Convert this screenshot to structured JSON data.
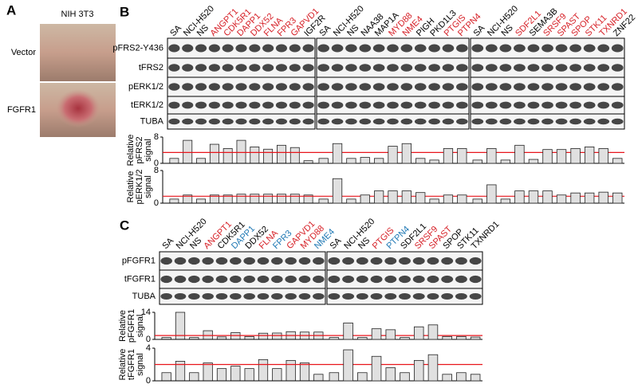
{
  "panels": {
    "A": {
      "label": "A",
      "title": "NIH 3T3",
      "rows": [
        "Vector",
        "FGFR1"
      ]
    },
    "B": {
      "label": "B",
      "lanes": [
        [
          {
            "text": "SA",
            "color": "#000000"
          },
          {
            "text": "NCI-H520",
            "color": "#000000"
          },
          {
            "text": "NS",
            "color": "#000000"
          },
          {
            "text": "ANGPT1",
            "color": "#d62027"
          },
          {
            "text": "CDK5R1",
            "color": "#d62027"
          },
          {
            "text": "DAPP1",
            "color": "#d62027"
          },
          {
            "text": "DDX52",
            "color": "#d62027"
          },
          {
            "text": "FLNA",
            "color": "#d62027"
          },
          {
            "text": "FPR3",
            "color": "#d62027"
          },
          {
            "text": "GAPVD1",
            "color": "#d62027"
          },
          {
            "text": "IGF2R",
            "color": "#000000"
          }
        ],
        [
          {
            "text": "SA",
            "color": "#000000"
          },
          {
            "text": "NCI-H520",
            "color": "#000000"
          },
          {
            "text": "NS",
            "color": "#000000"
          },
          {
            "text": "NAA38",
            "color": "#000000"
          },
          {
            "text": "MAP1A",
            "color": "#000000"
          },
          {
            "text": "MYD88",
            "color": "#d62027"
          },
          {
            "text": "NME4",
            "color": "#d62027"
          },
          {
            "text": "PIGH",
            "color": "#000000"
          },
          {
            "text": "PKD1L3",
            "color": "#000000"
          },
          {
            "text": "PTGIS",
            "color": "#d62027"
          },
          {
            "text": "PTPN4",
            "color": "#d62027"
          }
        ],
        [
          {
            "text": "SA",
            "color": "#000000"
          },
          {
            "text": "NCI-H520",
            "color": "#000000"
          },
          {
            "text": "NS",
            "color": "#000000"
          },
          {
            "text": "SDF2L1",
            "color": "#d62027"
          },
          {
            "text": "SEMA3B",
            "color": "#000000"
          },
          {
            "text": "SRSF9",
            "color": "#d62027"
          },
          {
            "text": "SPAST",
            "color": "#d62027"
          },
          {
            "text": "SPOP",
            "color": "#d62027"
          },
          {
            "text": "STK11",
            "color": "#d62027"
          },
          {
            "text": "TXNRD1",
            "color": "#d62027"
          },
          {
            "text": "ZNF22",
            "color": "#000000"
          }
        ]
      ],
      "rows": [
        "pFRS2-Y436",
        "tFRS2",
        "pERK1/2",
        "tERK1/2",
        "TUBA"
      ]
    },
    "C": {
      "label": "C",
      "lanes": [
        [
          {
            "text": "SA",
            "color": "#000000"
          },
          {
            "text": "NCI-H520",
            "color": "#000000"
          },
          {
            "text": "NS",
            "color": "#000000"
          },
          {
            "text": "ANGPT1",
            "color": "#d62027"
          },
          {
            "text": "CDK5R1",
            "color": "#000000"
          },
          {
            "text": "DAPP1",
            "color": "#1f78b4"
          },
          {
            "text": "DDX52",
            "color": "#000000"
          },
          {
            "text": "FLNA",
            "color": "#d62027"
          },
          {
            "text": "FPR3",
            "color": "#1f78b4"
          },
          {
            "text": "GAPVD1",
            "color": "#d62027"
          },
          {
            "text": "MYD88",
            "color": "#d62027"
          },
          {
            "text": "NME4",
            "color": "#1f78b4"
          }
        ],
        [
          {
            "text": "SA",
            "color": "#000000"
          },
          {
            "text": "NCI-H520",
            "color": "#000000"
          },
          {
            "text": "NS",
            "color": "#000000"
          },
          {
            "text": "PTGIS",
            "color": "#d62027"
          },
          {
            "text": "PTPN4",
            "color": "#1f78b4"
          },
          {
            "text": "SDF2L1",
            "color": "#000000"
          },
          {
            "text": "SRSF9",
            "color": "#d62027"
          },
          {
            "text": "SPAST",
            "color": "#d62027"
          },
          {
            "text": "SPOP",
            "color": "#000000"
          },
          {
            "text": "STK11",
            "color": "#000000"
          },
          {
            "text": "TXNRD1",
            "color": "#000000"
          }
        ]
      ],
      "rows": [
        "pFGFR1",
        "tFGFR1",
        "TUBA"
      ]
    }
  },
  "chart_data": [
    {
      "type": "bar",
      "ylabel": [
        "Relative",
        "pFRS2",
        "signal"
      ],
      "ylim": [
        0,
        8
      ],
      "yticks": [
        0,
        8
      ],
      "color": "#e0e0e0",
      "refline": 3.3,
      "refline_color": "#e8141b",
      "values": [
        [
          1.5,
          7,
          1.5,
          5.8,
          4.5,
          7,
          5,
          4.3,
          5.5,
          4.8,
          0.8
        ],
        [
          1.5,
          6,
          1.5,
          1.8,
          1.5,
          5.2,
          6,
          1.5,
          1,
          4.5,
          4.5
        ],
        [
          1,
          4.5,
          1,
          5.5,
          1.2,
          4.2,
          4.2,
          4.5,
          5,
          4.5,
          1.5
        ]
      ]
    },
    {
      "type": "bar",
      "ylabel": [
        "Relative",
        "pERK1/2",
        "signal"
      ],
      "ylim": [
        0,
        8
      ],
      "yticks": [
        0,
        8
      ],
      "color": "#e0e0e0",
      "refline": 1.7,
      "refline_color": "#e8141b",
      "values": [
        [
          1,
          2,
          1,
          2,
          2,
          2.2,
          2.2,
          2.2,
          2.2,
          2.2,
          2
        ],
        [
          1,
          6,
          1,
          2,
          3,
          3,
          3,
          2.6,
          1,
          2,
          2
        ],
        [
          1,
          4.5,
          1,
          3,
          3,
          3,
          2,
          2.5,
          2.5,
          2.7,
          2.5
        ]
      ]
    },
    {
      "type": "bar",
      "ylabel": [
        "Relative",
        "pFGFR1",
        "signal"
      ],
      "ylim": [
        0,
        14
      ],
      "yticks": [
        0,
        14
      ],
      "color": "#e0e0e0",
      "refline": 2,
      "refline_color": "#e8141b",
      "values": [
        [
          1,
          14,
          1,
          4.5,
          1.3,
          3.5,
          1.5,
          3.2,
          3.3,
          4,
          3.8,
          3.8
        ],
        [
          1,
          8.5,
          1,
          5.5,
          5,
          1,
          6.5,
          7.5,
          1.5,
          1.5,
          1.2
        ]
      ]
    },
    {
      "type": "bar",
      "ylabel": [
        "Relative",
        "tFGFR1",
        "signal"
      ],
      "ylim": [
        0,
        4
      ],
      "yticks": [
        0,
        4
      ],
      "color": "#e0e0e0",
      "refline": 2,
      "refline_color": "#e8141b",
      "values": [
        [
          1,
          2.4,
          1,
          2.2,
          1.5,
          1.8,
          1.5,
          2.6,
          1.5,
          2.5,
          2.2,
          0.8
        ],
        [
          1,
          3.8,
          1,
          3,
          1.6,
          1,
          2.5,
          3.2,
          0.8,
          1,
          0.8
        ]
      ]
    }
  ]
}
